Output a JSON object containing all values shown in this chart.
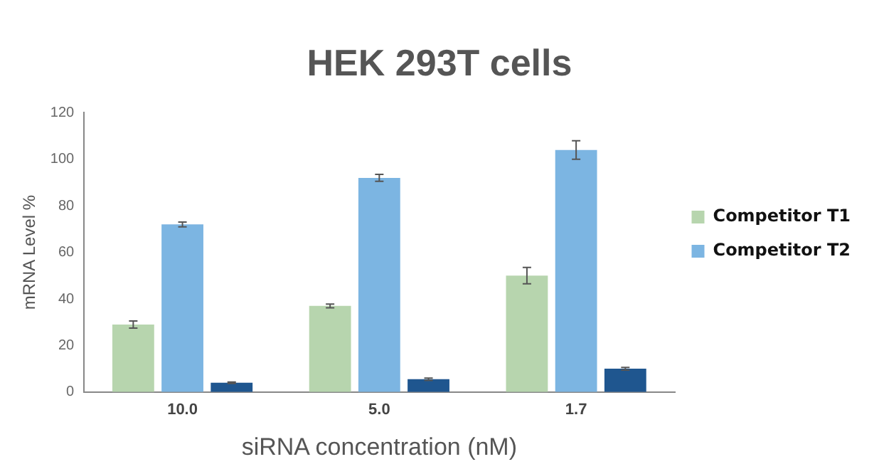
{
  "chart_data": {
    "type": "bar",
    "title": "HEK 293T cells",
    "xlabel": "siRNA concentration (nM)",
    "ylabel": "mRNA Level %",
    "categories": [
      "10.0",
      "5.0",
      "1.7"
    ],
    "series": [
      {
        "name": "Competitor T1",
        "color": "#b7d5ae",
        "values": [
          29,
          37,
          50
        ],
        "errors": [
          1.5,
          0.8,
          3.5
        ]
      },
      {
        "name": "Competitor T2",
        "color": "#7cb5e2",
        "values": [
          72,
          92,
          104
        ],
        "errors": [
          1,
          1.5,
          4
        ]
      },
      {
        "color": "#1f568f",
        "values": [
          4,
          5.5,
          10
        ],
        "errors": [
          0.3,
          0.5,
          0.6
        ]
      }
    ],
    "ylim": [
      0,
      120
    ],
    "yticks": [
      0,
      20,
      40,
      60,
      80,
      100,
      120
    ],
    "grid": false,
    "legend": "right"
  }
}
